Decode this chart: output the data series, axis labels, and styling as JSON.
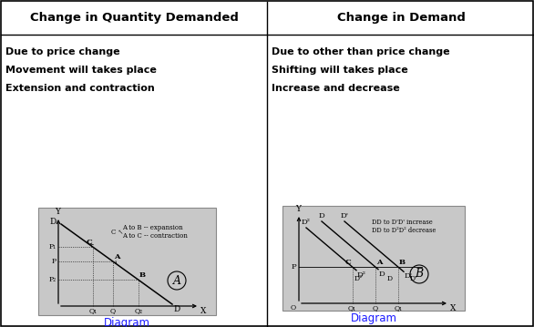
{
  "title_left": "Change in Quantity Demanded",
  "title_right": "Change in Demand",
  "left_texts": [
    "Due to price change",
    "Movement will takes place",
    "Extension and contraction"
  ],
  "right_texts": [
    "Due to other than price change",
    "Shifting will takes place",
    "Increase and decrease"
  ],
  "diagram_label_left": "Diagram",
  "diagram_label_right": "Diagram",
  "bg_color": "#c8c8c8",
  "cell_bg": "#ffffff",
  "border_color": "#000000",
  "text_color": "#000000",
  "blue_color": "#1a1aff",
  "header_font_size": 9.5,
  "body_font_size": 8.0,
  "diag_font_size": 6.0
}
